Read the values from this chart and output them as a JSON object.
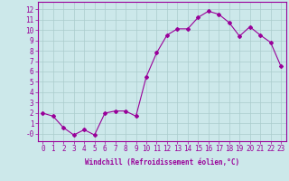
{
  "x": [
    0,
    1,
    2,
    3,
    4,
    5,
    6,
    7,
    8,
    9,
    10,
    11,
    12,
    13,
    14,
    15,
    16,
    17,
    18,
    19,
    20,
    21,
    22,
    23
  ],
  "y": [
    2.0,
    1.7,
    0.6,
    -0.1,
    0.4,
    -0.1,
    2.0,
    2.2,
    2.2,
    1.7,
    5.5,
    7.8,
    9.5,
    10.1,
    10.1,
    11.2,
    11.8,
    11.5,
    10.7,
    9.4,
    10.3,
    9.5,
    8.8,
    6.5
  ],
  "line_color": "#990099",
  "marker": "D",
  "marker_size": 2,
  "bg_color": "#cce8ea",
  "grid_color": "#aacccc",
  "xlabel": "Windchill (Refroidissement éolien,°C)",
  "yticks": [
    0,
    1,
    2,
    3,
    4,
    5,
    6,
    7,
    8,
    9,
    10,
    11,
    12
  ],
  "ytick_labels": [
    "-0",
    "1",
    "2",
    "3",
    "4",
    "5",
    "6",
    "7",
    "8",
    "9",
    "10",
    "11",
    "12"
  ],
  "xlim": [
    -0.5,
    23.5
  ],
  "ylim": [
    -0.7,
    12.7
  ],
  "tick_color": "#990099",
  "label_color": "#990099",
  "tick_fontsize": 5.5,
  "xlabel_fontsize": 5.5
}
